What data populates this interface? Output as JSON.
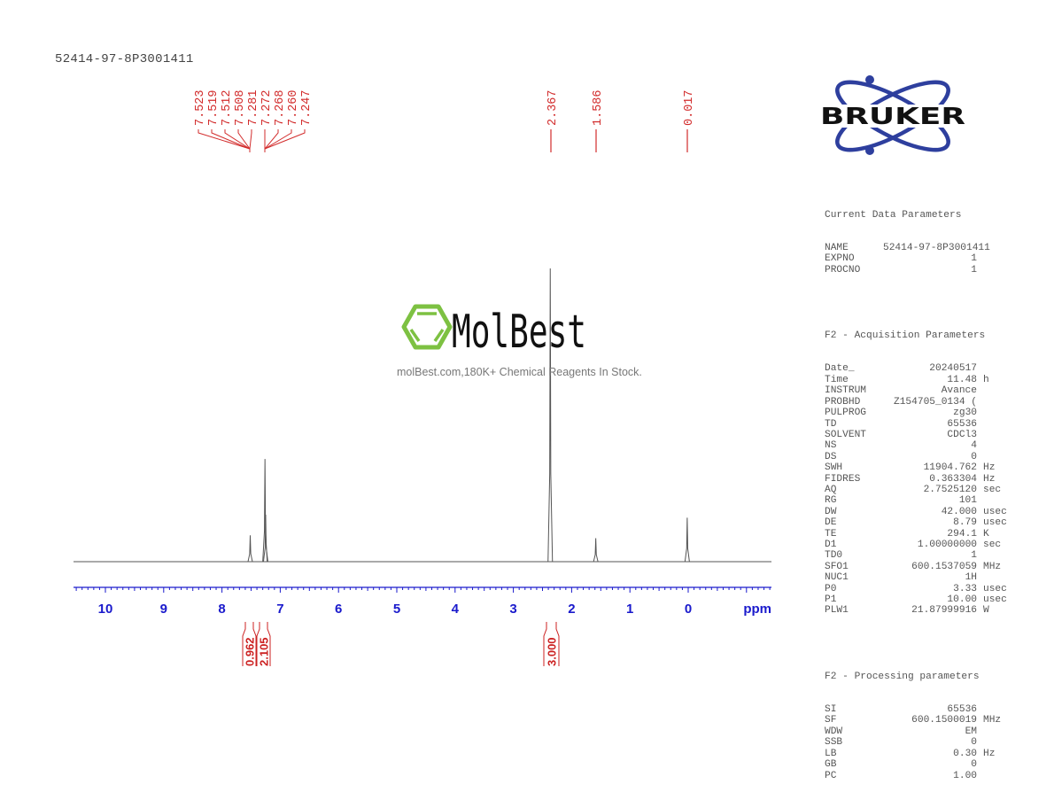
{
  "header": {
    "sample_name": "52414-97-8P3001411"
  },
  "watermark": {
    "brand": "MolBest",
    "tagline": "molBest.com,180K+ Chemical Reagents In Stock.",
    "brand_color": "#7dc142"
  },
  "logo": {
    "text": "BRUKER",
    "orbit_color": "#2e3f9e"
  },
  "parameters": {
    "current": {
      "title": "Current Data Parameters",
      "rows": [
        {
          "key": "NAME",
          "value": "52414-97-8P3001411",
          "unit": ""
        },
        {
          "key": "EXPNO",
          "value": "1",
          "unit": ""
        },
        {
          "key": "PROCNO",
          "value": "1",
          "unit": ""
        }
      ]
    },
    "acquisition": {
      "title": "F2 - Acquisition Parameters",
      "rows": [
        {
          "key": "Date_",
          "value": "20240517",
          "unit": ""
        },
        {
          "key": "Time",
          "value": "11.48",
          "unit": "h"
        },
        {
          "key": "INSTRUM",
          "value": "Avance",
          "unit": ""
        },
        {
          "key": "PROBHD",
          "value": "Z154705_0134 (",
          "unit": ""
        },
        {
          "key": "PULPROG",
          "value": "zg30",
          "unit": ""
        },
        {
          "key": "TD",
          "value": "65536",
          "unit": ""
        },
        {
          "key": "SOLVENT",
          "value": "CDCl3",
          "unit": ""
        },
        {
          "key": "NS",
          "value": "4",
          "unit": ""
        },
        {
          "key": "DS",
          "value": "0",
          "unit": ""
        },
        {
          "key": "SWH",
          "value": "11904.762",
          "unit": "Hz"
        },
        {
          "key": "FIDRES",
          "value": "0.363304",
          "unit": "Hz"
        },
        {
          "key": "AQ",
          "value": "2.7525120",
          "unit": "sec"
        },
        {
          "key": "RG",
          "value": "101",
          "unit": ""
        },
        {
          "key": "DW",
          "value": "42.000",
          "unit": "usec"
        },
        {
          "key": "DE",
          "value": "8.79",
          "unit": "usec"
        },
        {
          "key": "TE",
          "value": "294.1",
          "unit": "K"
        },
        {
          "key": "D1",
          "value": "1.00000000",
          "unit": "sec"
        },
        {
          "key": "TD0",
          "value": "1",
          "unit": ""
        },
        {
          "key": "SFO1",
          "value": "600.1537059",
          "unit": "MHz"
        },
        {
          "key": "NUC1",
          "value": "1H",
          "unit": ""
        },
        {
          "key": "P0",
          "value": "3.33",
          "unit": "usec"
        },
        {
          "key": "P1",
          "value": "10.00",
          "unit": "usec"
        },
        {
          "key": "PLW1",
          "value": "21.87999916",
          "unit": "W"
        }
      ]
    },
    "processing": {
      "title": "F2 - Processing parameters",
      "rows": [
        {
          "key": "SI",
          "value": "65536",
          "unit": ""
        },
        {
          "key": "SF",
          "value": "600.1500019",
          "unit": "MHz"
        },
        {
          "key": "WDW",
          "value": "EM",
          "unit": ""
        },
        {
          "key": "SSB",
          "value": "0",
          "unit": ""
        },
        {
          "key": "LB",
          "value": "0.30",
          "unit": "Hz"
        },
        {
          "key": "GB",
          "value": "0",
          "unit": ""
        },
        {
          "key": "PC",
          "value": "1.00",
          "unit": ""
        }
      ]
    }
  },
  "colors": {
    "peak_label": "#d22b2b",
    "axis": "#1a1acc",
    "spectrum": "#555555",
    "integral": "#cc2222"
  },
  "chart_data": {
    "type": "line",
    "title": "52414-97-8P3001411",
    "xlabel": "ppm",
    "ylabel": "",
    "xlim": [
      10.55,
      -1.43
    ],
    "x_reversed": true,
    "grid": false,
    "tick_labels": [
      "10",
      "9",
      "8",
      "7",
      "6",
      "5",
      "4",
      "3",
      "2",
      "1",
      "0"
    ],
    "axis_unit_label": "ppm",
    "peak_labels": [
      "7.523",
      "7.519",
      "7.512",
      "7.508",
      "7.281",
      "7.272",
      "7.268",
      "7.260",
      "7.247",
      "2.367",
      "1.586",
      "0.017"
    ],
    "peaks": [
      {
        "ppm": 7.515,
        "rel_height": 0.09
      },
      {
        "ppm": 7.262,
        "rel_height": 0.35
      },
      {
        "ppm": 7.25,
        "rel_height": 0.16
      },
      {
        "ppm": 2.367,
        "rel_height": 1.0
      },
      {
        "ppm": 1.586,
        "rel_height": 0.08
      },
      {
        "ppm": 0.017,
        "rel_height": 0.15
      }
    ],
    "integrals": [
      {
        "from": 7.58,
        "to": 7.42,
        "value": "0.962"
      },
      {
        "from": 7.33,
        "to": 7.2,
        "value": "2.105"
      },
      {
        "from": 2.46,
        "to": 2.28,
        "value": "3.000"
      }
    ]
  }
}
